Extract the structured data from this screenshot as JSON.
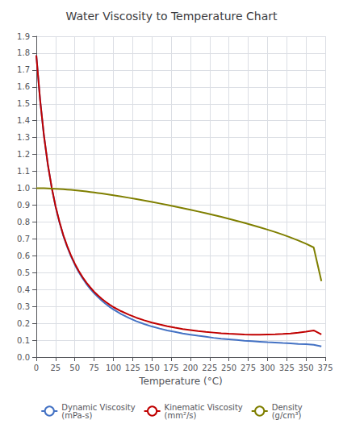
{
  "chart_data": {
    "type": "line",
    "title": "Water Viscosity to Temperature Chart",
    "xlabel": "Temperature (°C)",
    "x": [
      0,
      5,
      10,
      15,
      20,
      25,
      30,
      35,
      40,
      45,
      50,
      55,
      60,
      65,
      70,
      75,
      80,
      85,
      90,
      95,
      100,
      110,
      120,
      130,
      140,
      150,
      160,
      170,
      180,
      190,
      200,
      210,
      220,
      230,
      240,
      250,
      260,
      270,
      280,
      290,
      300,
      310,
      320,
      330,
      340,
      350,
      360,
      370
    ],
    "series": [
      {
        "name": "Dynamic Viscosity\n(mPa-s)",
        "color": "#4472c4",
        "values": [
          1.787,
          1.519,
          1.307,
          1.138,
          1.002,
          0.89,
          0.798,
          0.719,
          0.653,
          0.596,
          0.547,
          0.504,
          0.467,
          0.433,
          0.404,
          0.378,
          0.355,
          0.334,
          0.315,
          0.298,
          0.282,
          0.255,
          0.232,
          0.212,
          0.196,
          0.181,
          0.169,
          0.158,
          0.149,
          0.14,
          0.133,
          0.126,
          0.12,
          0.114,
          0.109,
          0.105,
          0.101,
          0.097,
          0.094,
          0.091,
          0.088,
          0.086,
          0.083,
          0.081,
          0.078,
          0.076,
          0.073,
          0.063
        ]
      },
      {
        "name": "Kinematic Viscosity\n(mm²/s)",
        "color": "#c00000",
        "values": [
          1.787,
          1.52,
          1.308,
          1.14,
          1.004,
          0.893,
          0.802,
          0.723,
          0.658,
          0.602,
          0.553,
          0.511,
          0.474,
          0.441,
          0.413,
          0.387,
          0.365,
          0.345,
          0.327,
          0.311,
          0.296,
          0.272,
          0.251,
          0.233,
          0.218,
          0.204,
          0.193,
          0.183,
          0.174,
          0.166,
          0.16,
          0.154,
          0.149,
          0.145,
          0.141,
          0.138,
          0.136,
          0.134,
          0.133,
          0.133,
          0.134,
          0.135,
          0.137,
          0.14,
          0.144,
          0.15,
          0.158,
          0.134
        ]
      },
      {
        "name": "Density\n(g/cm³)",
        "color": "#7f7f00",
        "values": [
          0.9998,
          0.9999,
          0.9997,
          0.9991,
          0.9982,
          0.997,
          0.9956,
          0.994,
          0.9922,
          0.9902,
          0.988,
          0.9857,
          0.9832,
          0.9806,
          0.9778,
          0.9748,
          0.9718,
          0.9686,
          0.9653,
          0.9619,
          0.9584,
          0.951,
          0.9434,
          0.9354,
          0.9272,
          0.9187,
          0.91,
          0.901,
          0.8917,
          0.8822,
          0.8724,
          0.8623,
          0.8519,
          0.8412,
          0.8302,
          0.8188,
          0.807,
          0.7948,
          0.782,
          0.7686,
          0.7549,
          0.7404,
          0.7248,
          0.7083,
          0.6906,
          0.6711,
          0.6493,
          0.45
        ]
      }
    ],
    "xlim": [
      0,
      375
    ],
    "ylim": [
      0,
      1.9
    ],
    "xticks": [
      0,
      25,
      50,
      75,
      100,
      125,
      150,
      175,
      200,
      225,
      250,
      275,
      300,
      325,
      350,
      375
    ],
    "yticks": [
      {
        "value": 0,
        "label": "0.0"
      },
      0.1,
      0.2,
      0.3,
      0.4,
      0.5,
      0.6,
      0.7,
      0.8,
      0.9,
      {
        "value": 1,
        "label": "1.0"
      },
      1.1,
      1.2,
      1.3,
      1.4,
      1.5,
      1.6,
      1.7,
      1.8,
      1.9
    ],
    "grid": true,
    "legend": "bottom"
  }
}
